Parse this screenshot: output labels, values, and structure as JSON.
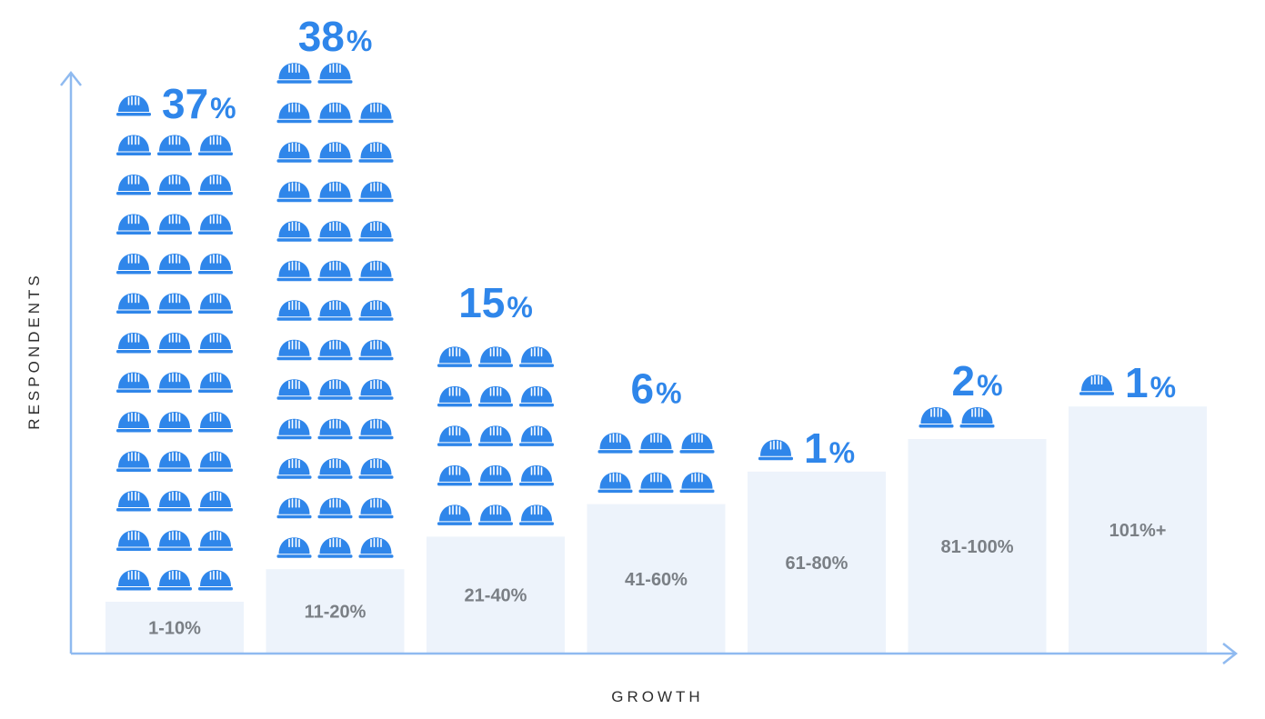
{
  "chart_data": {
    "type": "bar",
    "title": "",
    "xlabel": "GROWTH",
    "ylabel": "RESPONDENTS",
    "categories": [
      "1-10%",
      "11-20%",
      "21-40%",
      "41-60%",
      "61-80%",
      "81-100%",
      "101%+"
    ],
    "series": [
      {
        "values": [
          37,
          38,
          15,
          6,
          1,
          2,
          1
        ],
        "labels": [
          "37",
          "38",
          "15",
          "6",
          "1",
          "2",
          "1"
        ],
        "icon_counts": [
          37,
          38,
          15,
          6,
          1,
          2,
          1
        ]
      }
    ],
    "unit": "%",
    "icon": "hard-hat-icon",
    "grid": false,
    "colors": {
      "accent": "#2f86ea",
      "bar_base": "#edf3fb",
      "axis": "#8fbaf0",
      "label": "#7a7f85"
    }
  }
}
